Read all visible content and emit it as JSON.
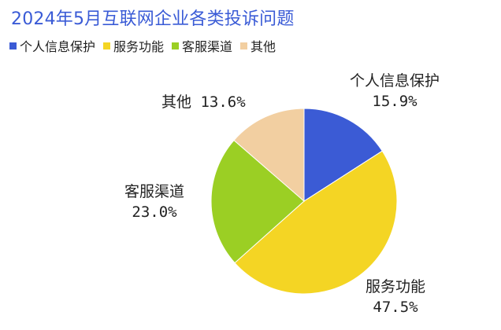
{
  "chart_data": {
    "type": "pie",
    "title": "2024年5月互联网企业各类投诉问题",
    "categories": [
      "个人信息保护",
      "服务功能",
      "客服渠道",
      "其他"
    ],
    "values": [
      15.9,
      47.5,
      23.0,
      13.6
    ],
    "value_labels": [
      "15.9%",
      "47.5%",
      "23.0%",
      "13.6%"
    ],
    "colors": [
      "#3b5bd5",
      "#f4d524",
      "#9bcf24",
      "#f2cfa1"
    ],
    "legend_position": "top-left",
    "start_angle": "12 o'clock",
    "direction": "clockwise"
  }
}
